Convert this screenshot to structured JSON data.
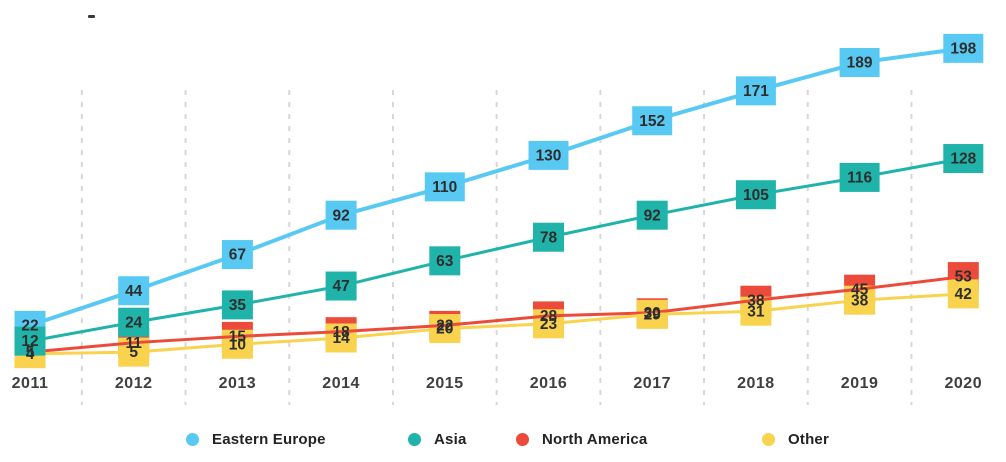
{
  "title_mark": "-",
  "chart_data": {
    "type": "line",
    "title": "",
    "xlabel": "",
    "ylabel": "",
    "categories": [
      "2011",
      "2012",
      "2013",
      "2014",
      "2015",
      "2016",
      "2017",
      "2018",
      "2019",
      "2020"
    ],
    "series": [
      {
        "name": "Eastern Europe",
        "color": "#58c9f3",
        "values": [
          22,
          44,
          67,
          92,
          110,
          130,
          152,
          171,
          189,
          198
        ]
      },
      {
        "name": "Asia",
        "color": "#1fb3aa",
        "values": [
          12,
          24,
          35,
          47,
          63,
          78,
          92,
          105,
          116,
          128
        ]
      },
      {
        "name": "North America",
        "color": "#ec4a3a",
        "values": [
          5,
          11,
          15,
          18,
          22,
          28,
          30,
          38,
          45,
          53
        ]
      },
      {
        "name": "Other",
        "color": "#f9d24e",
        "values": [
          4,
          5,
          10,
          14,
          20,
          23,
          29,
          31,
          38,
          42
        ]
      }
    ],
    "ylim": [
      0,
      210
    ],
    "point_labels": true,
    "point_label_text_color": "#2e2e2e",
    "grid": {
      "vertical_dashed_between_categories": true,
      "color": "#d7d7d7"
    },
    "axis_tick_color": "#3f3f3f",
    "legend_position": "bottom",
    "legend": [
      "Eastern Europe",
      "Asia",
      "North America",
      "Other"
    ]
  }
}
